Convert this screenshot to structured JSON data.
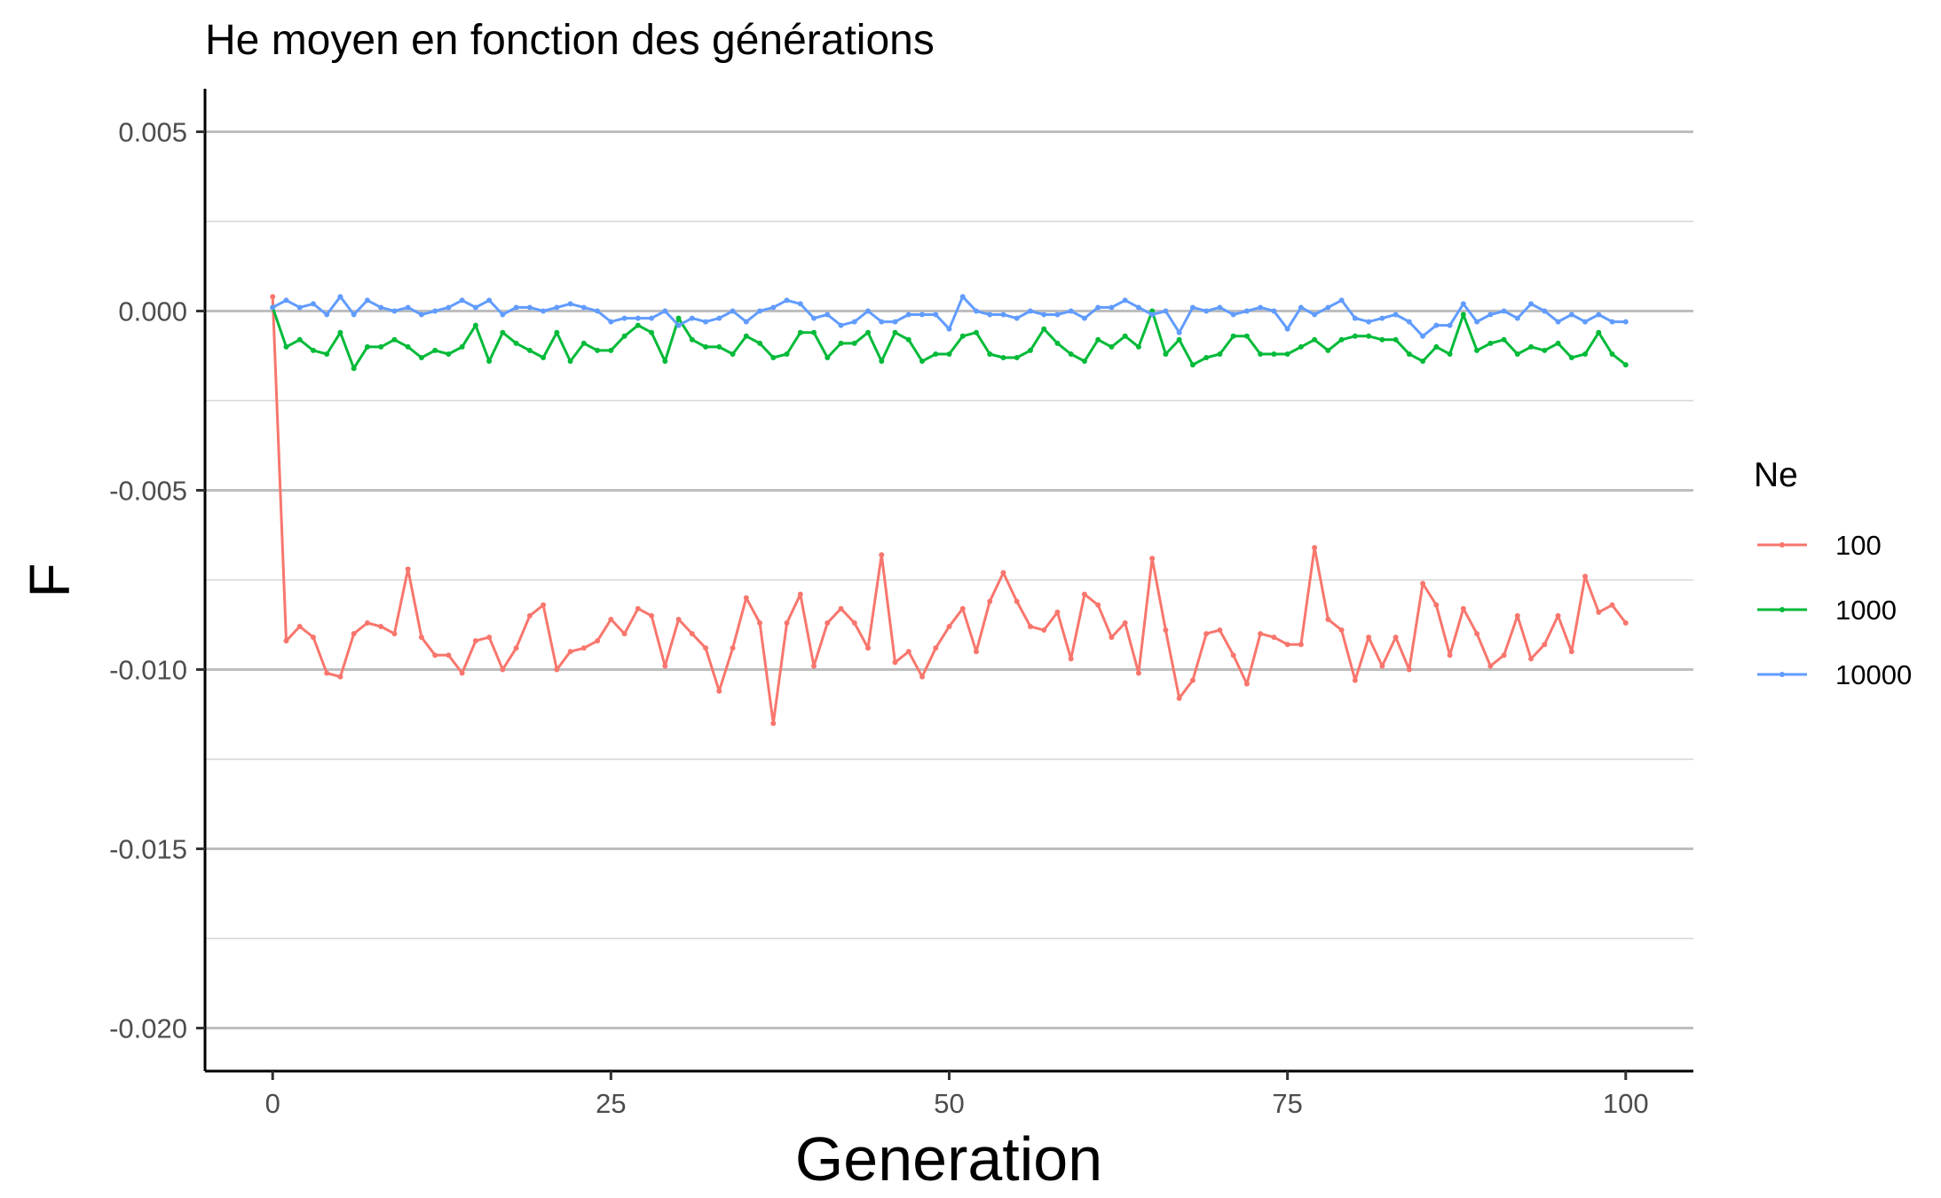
{
  "chart_data": {
    "type": "line",
    "title": "He moyen en fonction des générations",
    "xlabel": "Generation",
    "ylabel": "F",
    "xlim": [
      -5,
      105
    ],
    "ylim": [
      -0.0212,
      0.0062
    ],
    "x_ticks": [
      {
        "value": 0,
        "label": "0"
      },
      {
        "value": 25,
        "label": "25"
      },
      {
        "value": 50,
        "label": "50"
      },
      {
        "value": 75,
        "label": "75"
      },
      {
        "value": 100,
        "label": "100"
      }
    ],
    "y_ticks": [
      {
        "value": 0.005,
        "label": "0.005"
      },
      {
        "value": 0.0,
        "label": "0.000"
      },
      {
        "value": -0.005,
        "label": "-0.005"
      },
      {
        "value": -0.01,
        "label": "-0.010"
      },
      {
        "value": -0.015,
        "label": "-0.015"
      },
      {
        "value": -0.02,
        "label": "-0.020"
      }
    ],
    "y_minor_grid": [
      0.0025,
      -0.0025,
      -0.0075,
      -0.0125,
      -0.0175
    ],
    "grid": "horizontal",
    "legend": {
      "title": "Ne",
      "position": "right"
    },
    "x": [
      0,
      1,
      2,
      3,
      4,
      5,
      6,
      7,
      8,
      9,
      10,
      11,
      12,
      13,
      14,
      15,
      16,
      17,
      18,
      19,
      20,
      21,
      22,
      23,
      24,
      25,
      26,
      27,
      28,
      29,
      30,
      31,
      32,
      33,
      34,
      35,
      36,
      37,
      38,
      39,
      40,
      41,
      42,
      43,
      44,
      45,
      46,
      47,
      48,
      49,
      50,
      51,
      52,
      53,
      54,
      55,
      56,
      57,
      58,
      59,
      60,
      61,
      62,
      63,
      64,
      65,
      66,
      67,
      68,
      69,
      70,
      71,
      72,
      73,
      74,
      75,
      76,
      77,
      78,
      79,
      80,
      81,
      82,
      83,
      84,
      85,
      86,
      87,
      88,
      89,
      90,
      91,
      92,
      93,
      94,
      95,
      96,
      97,
      98,
      99,
      100
    ],
    "series": [
      {
        "name": "100",
        "color": "#F8766D",
        "values": [
          0.0004,
          -0.0092,
          -0.0088,
          -0.0091,
          -0.0101,
          -0.0102,
          -0.009,
          -0.0087,
          -0.0088,
          -0.009,
          -0.0072,
          -0.0091,
          -0.0096,
          -0.0096,
          -0.0101,
          -0.0092,
          -0.0091,
          -0.01,
          -0.0094,
          -0.0085,
          -0.0082,
          -0.01,
          -0.0095,
          -0.0094,
          -0.0092,
          -0.0086,
          -0.009,
          -0.0083,
          -0.0085,
          -0.0099,
          -0.0086,
          -0.009,
          -0.0094,
          -0.0106,
          -0.0094,
          -0.008,
          -0.0087,
          -0.0115,
          -0.0087,
          -0.0079,
          -0.0099,
          -0.0087,
          -0.0083,
          -0.0087,
          -0.0094,
          -0.0068,
          -0.0098,
          -0.0095,
          -0.0102,
          -0.0094,
          -0.0088,
          -0.0083,
          -0.0095,
          -0.0081,
          -0.0073,
          -0.0081,
          -0.0088,
          -0.0089,
          -0.0084,
          -0.0097,
          -0.0079,
          -0.0082,
          -0.0091,
          -0.0087,
          -0.0101,
          -0.0069,
          -0.0089,
          -0.0108,
          -0.0103,
          -0.009,
          -0.0089,
          -0.0096,
          -0.0104,
          -0.009,
          -0.0091,
          -0.0093,
          -0.0093,
          -0.0066,
          -0.0086,
          -0.0089,
          -0.0103,
          -0.0091,
          -0.0099,
          -0.0091,
          -0.01,
          -0.0076,
          -0.0082,
          -0.0096,
          -0.0083,
          -0.009,
          -0.0099,
          -0.0096,
          -0.0085,
          -0.0097,
          -0.0093,
          -0.0085,
          -0.0095,
          -0.0074,
          -0.0084,
          -0.0082,
          -0.0087
        ]
      },
      {
        "name": "1000",
        "color": "#00BA38",
        "values": [
          0.0001,
          -0.001,
          -0.0008,
          -0.0011,
          -0.0012,
          -0.0006,
          -0.0016,
          -0.001,
          -0.001,
          -0.0008,
          -0.001,
          -0.0013,
          -0.0011,
          -0.0012,
          -0.001,
          -0.0004,
          -0.0014,
          -0.0006,
          -0.0009,
          -0.0011,
          -0.0013,
          -0.0006,
          -0.0014,
          -0.0009,
          -0.0011,
          -0.0011,
          -0.0007,
          -0.0004,
          -0.0006,
          -0.0014,
          -0.0002,
          -0.0008,
          -0.001,
          -0.001,
          -0.0012,
          -0.0007,
          -0.0009,
          -0.0013,
          -0.0012,
          -0.0006,
          -0.0006,
          -0.0013,
          -0.0009,
          -0.0009,
          -0.0006,
          -0.0014,
          -0.0006,
          -0.0008,
          -0.0014,
          -0.0012,
          -0.0012,
          -0.0007,
          -0.0006,
          -0.0012,
          -0.0013,
          -0.0013,
          -0.0011,
          -0.0005,
          -0.0009,
          -0.0012,
          -0.0014,
          -0.0008,
          -0.001,
          -0.0007,
          -0.001,
          0.0,
          -0.0012,
          -0.0008,
          -0.0015,
          -0.0013,
          -0.0012,
          -0.0007,
          -0.0007,
          -0.0012,
          -0.0012,
          -0.0012,
          -0.001,
          -0.0008,
          -0.0011,
          -0.0008,
          -0.0007,
          -0.0007,
          -0.0008,
          -0.0008,
          -0.0012,
          -0.0014,
          -0.001,
          -0.0012,
          -0.0001,
          -0.0011,
          -0.0009,
          -0.0008,
          -0.0012,
          -0.001,
          -0.0011,
          -0.0009,
          -0.0013,
          -0.0012,
          -0.0006,
          -0.0012,
          -0.0015
        ]
      },
      {
        "name": "10000",
        "color": "#619CFF",
        "values": [
          0.0001,
          0.0003,
          0.0001,
          0.0002,
          -0.0001,
          0.0004,
          -0.0001,
          0.0003,
          0.0001,
          0.0,
          0.0001,
          -0.0001,
          0.0,
          0.0001,
          0.0003,
          0.0001,
          0.0003,
          -0.0001,
          0.0001,
          0.0001,
          0.0,
          0.0001,
          0.0002,
          0.0001,
          0.0,
          -0.0003,
          -0.0002,
          -0.0002,
          -0.0002,
          0.0,
          -0.0004,
          -0.0002,
          -0.0003,
          -0.0002,
          0.0,
          -0.0003,
          0.0,
          0.0001,
          0.0003,
          0.0002,
          -0.0002,
          -0.0001,
          -0.0004,
          -0.0003,
          0.0,
          -0.0003,
          -0.0003,
          -0.0001,
          -0.0001,
          -0.0001,
          -0.0005,
          0.0004,
          0.0,
          -0.0001,
          -0.0001,
          -0.0002,
          0.0,
          -0.0001,
          -0.0001,
          0.0,
          -0.0002,
          0.0001,
          0.0001,
          0.0003,
          0.0001,
          -0.0001,
          0.0,
          -0.0006,
          0.0001,
          0.0,
          0.0001,
          -0.0001,
          0.0,
          0.0001,
          0.0,
          -0.0005,
          0.0001,
          -0.0001,
          0.0001,
          0.0003,
          -0.0002,
          -0.0003,
          -0.0002,
          -0.0001,
          -0.0003,
          -0.0007,
          -0.0004,
          -0.0004,
          0.0002,
          -0.0003,
          -0.0001,
          0.0,
          -0.0002,
          0.0002,
          0.0,
          -0.0003,
          -0.0001,
          -0.0003,
          -0.0001,
          -0.0003,
          -0.0003
        ]
      }
    ]
  }
}
